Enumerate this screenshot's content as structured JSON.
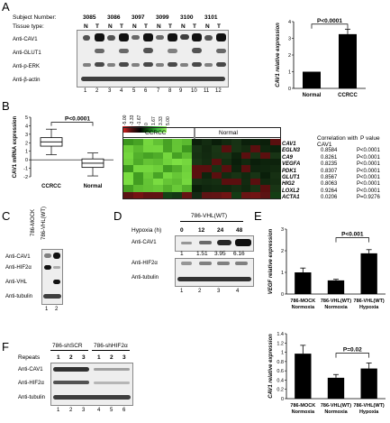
{
  "panels": {
    "A": "A",
    "B": "B",
    "C": "C",
    "D": "D",
    "E": "E",
    "F": "F"
  },
  "A": {
    "subject_label": "Subject Number:",
    "subjects": [
      "3085",
      "3086",
      "3097",
      "3099",
      "3100",
      "3101"
    ],
    "tissue_label": "Tissue type:",
    "tissue": [
      "N",
      "T",
      "N",
      "T",
      "N",
      "T",
      "N",
      "T",
      "N",
      "T",
      "N",
      "T"
    ],
    "rows": [
      "Anti-CAV1",
      "Anti-GLUT1",
      "Anti-p-ERK",
      "Anti-β-actin"
    ],
    "lanes": [
      "1",
      "2",
      "3",
      "4",
      "5",
      "6",
      "7",
      "8",
      "9",
      "10",
      "11",
      "12"
    ]
  },
  "B": {
    "scale": [
      "-5.00",
      "-3.33",
      "-1.67",
      "0",
      "1.67",
      "3.33",
      "5.00"
    ],
    "groups": [
      "CCRCC",
      "Normal"
    ],
    "genes": [
      "CAV1",
      "EGLN3",
      "CA9",
      "VEGFA",
      "PDK1",
      "GLUT1",
      "HIG2",
      "LOXL2",
      "ACTA1"
    ],
    "corr_header": "Correlation with CAV1",
    "pval_header": "P value",
    "corr": [
      "",
      "0.8584",
      "0.8261",
      "0.8235",
      "0.8307",
      "0.8567",
      "0.8063",
      "0.9264",
      "0.0206"
    ],
    "pvals": [
      "",
      "P<0.0001",
      "P<0.0001",
      "P<0.0001",
      "P<0.0001",
      "P<0.0001",
      "P<0.0001",
      "P<0.0001",
      "P=0.9276"
    ]
  },
  "C": {
    "cols": [
      "786-MOCK",
      "786-VHL(WT)"
    ],
    "rows": [
      "Anti-CAV1",
      "Anti-HIF2α",
      "Anti-VHL",
      "Anti-tubulin"
    ],
    "lanes": [
      "1",
      "2"
    ]
  },
  "D": {
    "title": "786-VHL(WT)",
    "hypoxia_label": "Hypoxia (h)",
    "times": [
      "0",
      "12",
      "24",
      "48"
    ],
    "rows": [
      "Anti-CAV1",
      "Anti-HIF2α",
      "Anti-tubulin"
    ],
    "quant": [
      "1",
      "1.51",
      "3.95",
      "6.16"
    ],
    "lanes": [
      "1",
      "2",
      "3",
      "4"
    ]
  },
  "F": {
    "groups": [
      "786-shSCR",
      "786-shHIF2α"
    ],
    "repeats_label": "Repeats",
    "repeats": [
      "1",
      "2",
      "3",
      "1",
      "2",
      "3"
    ],
    "rows": [
      "Anti-CAV1",
      "Anti-HIF2α",
      "Anti-tubulin"
    ],
    "lanes": [
      "1",
      "2",
      "3",
      "4",
      "5",
      "6"
    ]
  },
  "chart_data": [
    {
      "id": "A-bar",
      "type": "bar",
      "categories": [
        "Normal",
        "CCRCC"
      ],
      "values": [
        1.0,
        3.25
      ],
      "errors": [
        0,
        0.3
      ],
      "ylabel": "CAV1 relative expression",
      "ylim": [
        0,
        4
      ],
      "yticks": [
        "0",
        "1",
        "2",
        "3",
        "4"
      ],
      "annotation": "P<0.0001"
    },
    {
      "id": "B-box",
      "type": "box",
      "categories": [
        "CCRCC",
        "Normal"
      ],
      "boxes": [
        {
          "min": 0.6,
          "q1": 1.6,
          "median": 2.1,
          "q3": 2.6,
          "max": 3.6
        },
        {
          "min": -1.9,
          "q1": -0.9,
          "median": -0.4,
          "q3": 0.1,
          "max": 0.8
        }
      ],
      "ylabel": "CAV1 mRNA expression",
      "ylim": [
        -2,
        5
      ],
      "yticks": [
        "-2",
        "-1",
        "0",
        "1",
        "2",
        "3",
        "4",
        "5"
      ],
      "annotation": "P<0.0001"
    },
    {
      "id": "E-top",
      "type": "bar",
      "categories": [
        "786-MOCK Normoxia",
        "786-VHL(WT) Normoxia",
        "786-VHL(WT) Hypoxia"
      ],
      "cat_line1": [
        "786-MOCK",
        "786-VHL(WT)",
        "786-VHL(WT)"
      ],
      "cat_line2": [
        "Normoxia",
        "Normoxia",
        "Hypoxia"
      ],
      "values": [
        1.0,
        0.63,
        1.88
      ],
      "errors": [
        0.2,
        0.05,
        0.17
      ],
      "ylabel": "VEGF relative expression",
      "ylim": [
        0,
        3
      ],
      "yticks": [
        "0",
        "1",
        "2",
        "3"
      ],
      "annotation": "P<0.001"
    },
    {
      "id": "E-bottom",
      "type": "bar",
      "categories": [
        "786-MOCK Normoxia",
        "786-VHL(WT) Normoxia",
        "786-VHL(WT) Hypoxia"
      ],
      "cat_line1": [
        "786-MOCK",
        "786-VHL(WT)",
        "786-VHL(WT)"
      ],
      "cat_line2": [
        "Normoxia",
        "Normoxia",
        "Hypoxia"
      ],
      "values": [
        0.97,
        0.45,
        0.65
      ],
      "errors": [
        0.18,
        0.07,
        0.12
      ],
      "ylabel": "CAV1 relative expression",
      "ylim": [
        0,
        1.4
      ],
      "yticks": [
        "0",
        "0.2",
        "0.4",
        "0.6",
        "0.8",
        "1",
        "1.2",
        "1.4"
      ],
      "annotation": "P=0.02"
    }
  ]
}
